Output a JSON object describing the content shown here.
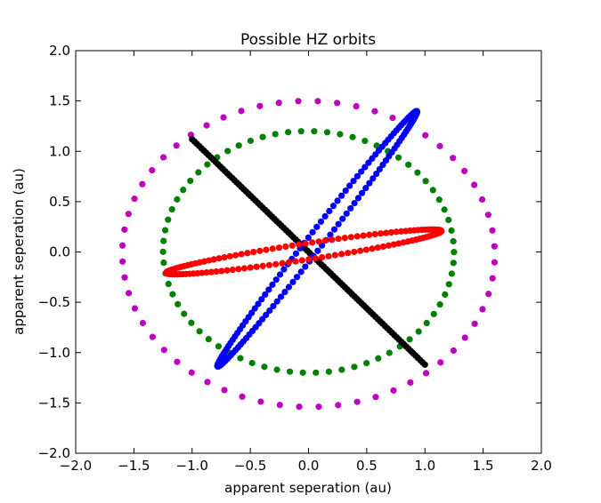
{
  "chart_data": {
    "type": "scatter",
    "title": "Possible HZ orbits",
    "xlabel": "apparent seperation (au)",
    "ylabel": "apparent seperation (au)",
    "xlim": [
      -2.0,
      2.0
    ],
    "ylim": [
      -2.0,
      2.0
    ],
    "xticks": [
      "−2.0",
      "−1.5",
      "−1.0",
      "−0.5",
      "0.0",
      "0.5",
      "1.0",
      "1.5",
      "2.0"
    ],
    "yticks": [
      "−2.0",
      "−1.5",
      "−1.0",
      "−0.5",
      "0.0",
      "0.5",
      "1.0",
      "1.5",
      "2.0"
    ],
    "grid": false,
    "legend": "none",
    "series": [
      {
        "color": "#bf00bf",
        "shape": "ellipse",
        "center": [
          0.0,
          -0.02
        ],
        "semi_axes": [
          1.6,
          1.52
        ],
        "tilt_deg": -3,
        "points": 60
      },
      {
        "color": "#008000",
        "shape": "ellipse",
        "center": [
          0.0,
          0.0
        ],
        "semi_axes": [
          1.25,
          1.2
        ],
        "tilt_deg": -5,
        "points": 70
      },
      {
        "color": "#000000",
        "shape": "line",
        "from": [
          -1.0,
          1.12
        ],
        "to": [
          1.0,
          -1.12
        ],
        "points": 100
      },
      {
        "color": "#0000ff",
        "shape": "ellipse",
        "center": [
          0.075,
          0.13
        ],
        "semi_axes": [
          1.53,
          0.07
        ],
        "tilt_deg": 56,
        "points": 150
      },
      {
        "color": "#ff0000",
        "shape": "ellipse",
        "center": [
          -0.04,
          0.0
        ],
        "semi_axes": [
          1.2,
          0.08
        ],
        "tilt_deg": 10,
        "points": 130
      }
    ]
  }
}
